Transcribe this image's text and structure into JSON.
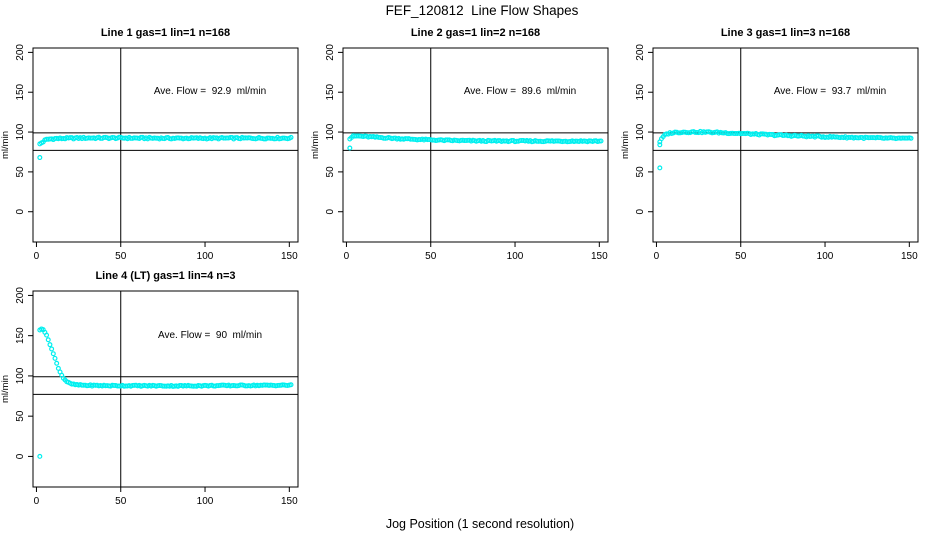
{
  "title": "FEF_120812  Line Flow Shapes",
  "xlabel": "Jog Position (1 second resolution)",
  "point_color": "#00EFEF",
  "line_color": "#000000",
  "chart_data": [
    {
      "type": "scatter",
      "title": "Line 1 gas=1 lin=1 n=168",
      "annotation": "Ave. Flow =  92.9  ml/min",
      "avg_flow": 92.9,
      "n": 168,
      "ylabel": "ml/min",
      "xticks": [
        0,
        50,
        100,
        150
      ],
      "yticks": [
        0,
        50,
        100,
        150,
        200
      ],
      "xlim": [
        0,
        150
      ],
      "ylim": [
        0,
        200
      ],
      "hlines": [
        99,
        77
      ],
      "vline": 50,
      "band_noise": 1.0,
      "profile": [
        [
          2,
          85
        ],
        [
          3,
          86.5
        ],
        [
          4,
          88
        ],
        [
          5,
          89.5
        ],
        [
          6,
          90.5
        ],
        [
          8,
          91.3
        ],
        [
          12,
          91.8
        ],
        [
          20,
          92.2
        ],
        [
          30,
          92.6
        ],
        [
          45,
          92.6
        ],
        [
          60,
          92.4
        ],
        [
          80,
          92.2
        ],
        [
          100,
          92.2
        ],
        [
          125,
          92.3
        ],
        [
          151,
          92.4
        ]
      ],
      "outliers": [
        [
          2,
          68
        ]
      ]
    },
    {
      "type": "scatter",
      "title": "Line 2 gas=1 lin=2 n=168",
      "annotation": "Ave. Flow =  89.6  ml/min",
      "avg_flow": 89.6,
      "n": 168,
      "ylabel": "ml/min",
      "xticks": [
        0,
        50,
        100,
        150
      ],
      "yticks": [
        0,
        50,
        100,
        150,
        200
      ],
      "xlim": [
        0,
        150
      ],
      "ylim": [
        0,
        200
      ],
      "hlines": [
        99,
        77
      ],
      "vline": 50,
      "band_noise": 0.8,
      "profile": [
        [
          2,
          91.5
        ],
        [
          3,
          93.5
        ],
        [
          4,
          94.6
        ],
        [
          6,
          95
        ],
        [
          9,
          94.7
        ],
        [
          13,
          94.1
        ],
        [
          18,
          93.4
        ],
        [
          24,
          92.6
        ],
        [
          30,
          91.9
        ],
        [
          38,
          91.1
        ],
        [
          46,
          90.4
        ],
        [
          55,
          89.8
        ],
        [
          65,
          89.3
        ],
        [
          78,
          88.9
        ],
        [
          95,
          88.7
        ],
        [
          120,
          88.6
        ],
        [
          151,
          88.6
        ]
      ],
      "outliers": [
        [
          2,
          80
        ]
      ]
    },
    {
      "type": "scatter",
      "title": "Line 3 gas=1 lin=3 n=168",
      "annotation": "Ave. Flow =  93.7  ml/min",
      "avg_flow": 93.7,
      "n": 168,
      "ylabel": "ml/min",
      "xticks": [
        0,
        50,
        100,
        150
      ],
      "yticks": [
        0,
        50,
        100,
        150,
        200
      ],
      "xlim": [
        0,
        150
      ],
      "ylim": [
        0,
        200
      ],
      "hlines": [
        99,
        77
      ],
      "vline": 50,
      "band_noise": 0.9,
      "profile": [
        [
          2,
          88
        ],
        [
          3,
          91
        ],
        [
          4,
          94
        ],
        [
          5,
          96
        ],
        [
          6,
          97.4
        ],
        [
          8,
          98.7
        ],
        [
          11,
          99.4
        ],
        [
          16,
          99.9
        ],
        [
          24,
          100.1
        ],
        [
          32,
          99.7
        ],
        [
          40,
          99.1
        ],
        [
          48,
          98.4
        ],
        [
          56,
          97.6
        ],
        [
          66,
          96.6
        ],
        [
          78,
          95.6
        ],
        [
          90,
          94.7
        ],
        [
          102,
          93.9
        ],
        [
          115,
          93.2
        ],
        [
          130,
          92.5
        ],
        [
          140,
          92.1
        ],
        [
          151,
          91.7
        ]
      ],
      "outliers": [
        [
          2,
          55
        ],
        [
          2,
          84
        ]
      ]
    },
    {
      "type": "scatter",
      "title": "Line 4 (LT) gas=1 lin=4 n=3",
      "annotation": "Ave. Flow =  90  ml/min",
      "avg_flow": 90,
      "n": 3,
      "ylabel": "ml/min",
      "xticks": [
        0,
        50,
        100,
        150
      ],
      "yticks": [
        0,
        50,
        100,
        150,
        200
      ],
      "xlim": [
        0,
        150
      ],
      "ylim": [
        0,
        200
      ],
      "hlines": [
        99,
        77
      ],
      "vline": 50,
      "band_noise": 0.7,
      "profile": [
        [
          2,
          157
        ],
        [
          3,
          159
        ],
        [
          4,
          158
        ],
        [
          5,
          154.5
        ],
        [
          6,
          150
        ],
        [
          7,
          145
        ],
        [
          8,
          139.5
        ],
        [
          9,
          133.5
        ],
        [
          10,
          127.5
        ],
        [
          11,
          121.5
        ],
        [
          12,
          115.5
        ],
        [
          13,
          110
        ],
        [
          14,
          105
        ],
        [
          15,
          101
        ],
        [
          16,
          97.5
        ],
        [
          17,
          95
        ],
        [
          18,
          93
        ],
        [
          19,
          91.5
        ],
        [
          20,
          90.5
        ],
        [
          22,
          89.4
        ],
        [
          25,
          88.7
        ],
        [
          30,
          88.2
        ],
        [
          40,
          87.9
        ],
        [
          55,
          87.8
        ],
        [
          70,
          87.7
        ],
        [
          85,
          87.6
        ],
        [
          100,
          87.8
        ],
        [
          115,
          88
        ],
        [
          130,
          88.2
        ],
        [
          151,
          88.4
        ]
      ],
      "outliers": [
        [
          2,
          0
        ]
      ]
    }
  ]
}
